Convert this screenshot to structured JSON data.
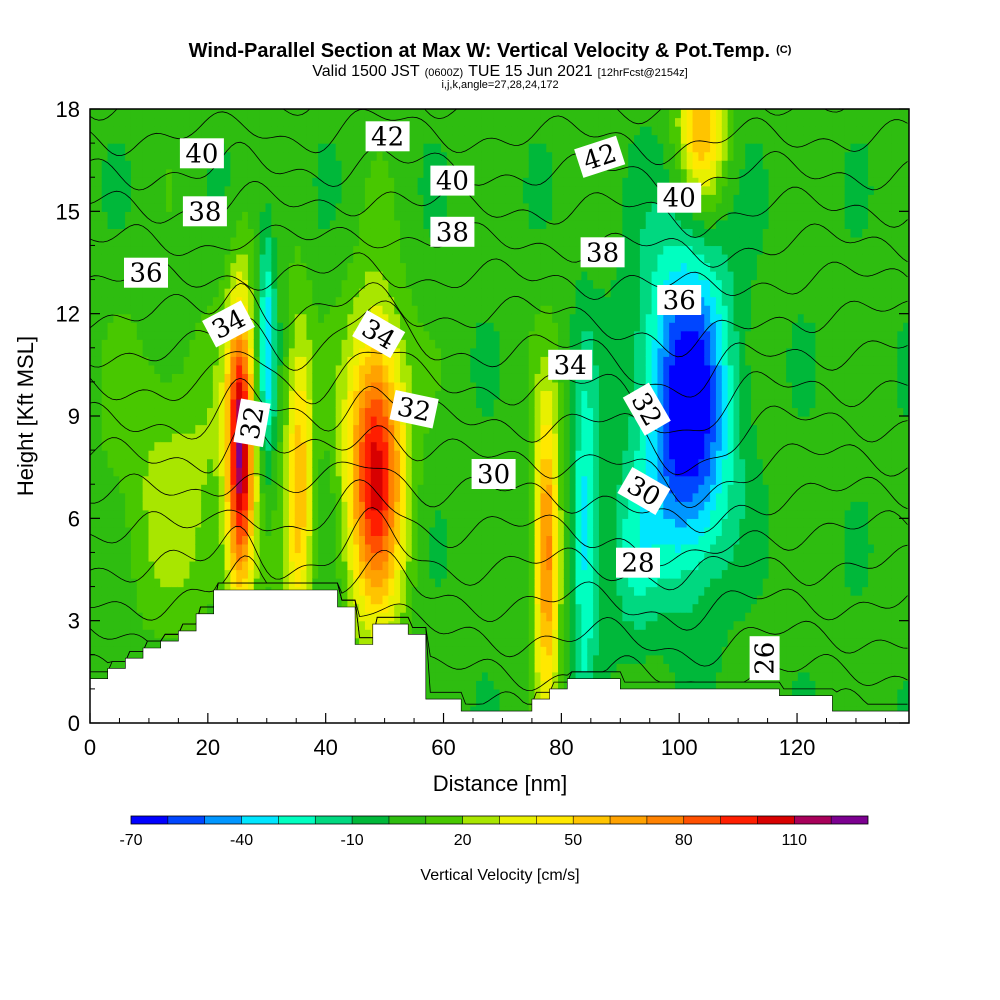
{
  "chart_data": {
    "type": "heatmap",
    "title": "Wind-Parallel Section at Max W: Vertical Velocity & Pot.Temp.",
    "title_mark": "(C)",
    "subtitle_parts": [
      "Valid 1500 JST",
      "(0600Z)",
      "TUE 15 Jun 2021",
      "[12hrFcst@2154z]"
    ],
    "subtitle2": "i,j,k,angle=27,28,24,172",
    "xlabel": "Distance [nm]",
    "ylabel": "Height [Kft MSL]",
    "xlim": [
      0,
      139
    ],
    "ylim": [
      0,
      18
    ],
    "x_ticks": [
      0,
      20,
      40,
      60,
      80,
      100,
      120
    ],
    "y_ticks": [
      0,
      3,
      6,
      9,
      12,
      15,
      18
    ],
    "colorbar": {
      "label": "Vertical Velocity [cm/s]",
      "tick_labels": [
        "-70",
        "-40",
        "-10",
        "20",
        "50",
        "80",
        "110"
      ],
      "tick_values": [
        -70,
        -40,
        -10,
        20,
        50,
        80,
        110
      ],
      "levels": [
        -70,
        -60,
        -50,
        -40,
        -30,
        -20,
        -10,
        0,
        10,
        20,
        30,
        40,
        50,
        60,
        70,
        80,
        90,
        100,
        110,
        120,
        130
      ],
      "colors": [
        "#0000ff",
        "#0046ff",
        "#0096ff",
        "#00e6ff",
        "#00ffc0",
        "#00d880",
        "#00b83a",
        "#2ebd10",
        "#48c800",
        "#a8e600",
        "#e8f000",
        "#ffe800",
        "#ffc400",
        "#ffa200",
        "#ff8200",
        "#ff5000",
        "#ff1e00",
        "#d80000",
        "#a8005a",
        "#7c0090"
      ]
    },
    "terrain": {
      "x": [
        0,
        3,
        6,
        9,
        12,
        15,
        18,
        21,
        24,
        27,
        30,
        33,
        36,
        39,
        42,
        45,
        48,
        51,
        54,
        57,
        60,
        63,
        66,
        69,
        72,
        75,
        78,
        81,
        84,
        87,
        90,
        93,
        96,
        99,
        102,
        105,
        108,
        111,
        114,
        117,
        120,
        123,
        126,
        129,
        132,
        135,
        139
      ],
      "ft": [
        1.3,
        1.6,
        1.9,
        2.2,
        2.4,
        2.7,
        3.2,
        3.9,
        3.9,
        3.9,
        3.9,
        3.9,
        3.9,
        3.9,
        3.4,
        2.3,
        2.9,
        2.9,
        2.6,
        0.7,
        0.7,
        0.35,
        0.35,
        0.35,
        0.35,
        0.7,
        1.0,
        1.3,
        1.3,
        1.3,
        1.0,
        1.0,
        1.0,
        1.0,
        1.0,
        1.0,
        1.0,
        1.0,
        1.0,
        0.8,
        0.8,
        0.8,
        0.35,
        0.35,
        0.35,
        0.35,
        0.35
      ]
    },
    "vertical_velocity_cores": [
      {
        "x": 25.5,
        "y": 8.0,
        "sx": 1.6,
        "sy": 3.0,
        "value": 110
      },
      {
        "x": 35.5,
        "y": 7.0,
        "sx": 1.6,
        "sy": 3.2,
        "value": 55
      },
      {
        "x": 48.5,
        "y": 7.5,
        "sx": 3.4,
        "sy": 3.0,
        "value": 100
      },
      {
        "x": 77.5,
        "y": 5.0,
        "sx": 1.5,
        "sy": 3.0,
        "value": 75
      },
      {
        "x": 104.0,
        "y": 17.5,
        "sx": 2.8,
        "sy": 1.5,
        "value": 55
      },
      {
        "x": 30.0,
        "y": 11.0,
        "sx": 1.0,
        "sy": 2.5,
        "value": -40
      },
      {
        "x": 84.0,
        "y": 5.5,
        "sx": 1.5,
        "sy": 3.5,
        "value": -40
      },
      {
        "x": 101.5,
        "y": 8.5,
        "sx": 5.0,
        "sy": 3.0,
        "value": -70
      },
      {
        "x": 100.5,
        "y": 12.0,
        "sx": 6.0,
        "sy": 2.5,
        "value": -20
      },
      {
        "x": 92.0,
        "y": 5.0,
        "sx": 3.0,
        "sy": 2.0,
        "value": -20
      },
      {
        "x": 15.0,
        "y": 7.0,
        "sx": 8.0,
        "sy": 3.0,
        "value": 20
      }
    ],
    "theta_contours": {
      "levels": [
        26,
        27,
        28,
        29,
        30,
        31,
        32,
        33,
        34,
        35,
        36,
        37,
        38,
        39,
        40,
        41,
        42,
        43
      ],
      "labels": [
        {
          "text": "40",
          "x": 19.0,
          "y": 16.7,
          "angle": 0
        },
        {
          "text": "38",
          "x": 19.5,
          "y": 15.0,
          "angle": 0
        },
        {
          "text": "36",
          "x": 9.5,
          "y": 13.2,
          "angle": 0
        },
        {
          "text": "34",
          "x": 23.5,
          "y": 11.7,
          "angle": -28
        },
        {
          "text": "32",
          "x": 27.5,
          "y": 8.8,
          "angle": -80
        },
        {
          "text": "42",
          "x": 50.5,
          "y": 17.2,
          "angle": 0
        },
        {
          "text": "40",
          "x": 61.5,
          "y": 15.9,
          "angle": 0
        },
        {
          "text": "38",
          "x": 61.5,
          "y": 14.4,
          "angle": 0
        },
        {
          "text": "34",
          "x": 49.0,
          "y": 11.4,
          "angle": 30
        },
        {
          "text": "32",
          "x": 55.0,
          "y": 9.2,
          "angle": 12
        },
        {
          "text": "30",
          "x": 68.5,
          "y": 7.3,
          "angle": 0
        },
        {
          "text": "42",
          "x": 86.5,
          "y": 16.6,
          "angle": -18
        },
        {
          "text": "38",
          "x": 87.0,
          "y": 13.8,
          "angle": 0
        },
        {
          "text": "34",
          "x": 81.5,
          "y": 10.5,
          "angle": 0
        },
        {
          "text": "40",
          "x": 100.0,
          "y": 15.4,
          "angle": 0
        },
        {
          "text": "36",
          "x": 100.0,
          "y": 12.4,
          "angle": 0
        },
        {
          "text": "32",
          "x": 94.5,
          "y": 9.2,
          "angle": 60
        },
        {
          "text": "30",
          "x": 94.0,
          "y": 6.8,
          "angle": 30
        },
        {
          "text": "28",
          "x": 93.0,
          "y": 4.7,
          "angle": 0
        },
        {
          "text": "26",
          "x": 114.5,
          "y": 1.9,
          "angle": -90
        }
      ]
    }
  }
}
